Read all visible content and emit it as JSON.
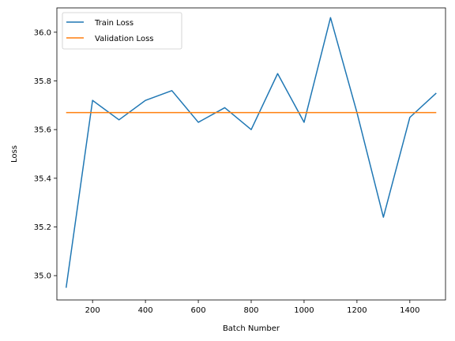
{
  "chart_data": {
    "type": "line",
    "title": "",
    "xlabel": "Batch Number",
    "ylabel": "Loss",
    "xlim": [
      65,
      1535
    ],
    "ylim": [
      34.9,
      36.1
    ],
    "xticks": [
      200,
      400,
      600,
      800,
      1000,
      1200,
      1400
    ],
    "yticks": [
      35.0,
      35.2,
      35.4,
      35.6,
      35.8,
      36.0
    ],
    "xtick_labels": [
      "200",
      "400",
      "600",
      "800",
      "1000",
      "1200",
      "1400"
    ],
    "ytick_labels": [
      "35.0",
      "35.2",
      "35.4",
      "35.6",
      "35.8",
      "36.0"
    ],
    "grid": false,
    "legend_position": "top-left",
    "x": [
      100,
      200,
      300,
      400,
      500,
      600,
      700,
      800,
      900,
      1000,
      1100,
      1200,
      1300,
      1400,
      1500
    ],
    "series": [
      {
        "name": "Train Loss",
        "color": "#1f77b4",
        "values": [
          34.95,
          35.72,
          35.64,
          35.72,
          35.76,
          35.63,
          35.69,
          35.6,
          35.83,
          35.63,
          36.06,
          35.67,
          35.24,
          35.65,
          35.75
        ]
      },
      {
        "name": "Validation Loss",
        "color": "#ff7f0e",
        "values": [
          35.67,
          35.67,
          35.67,
          35.67,
          35.67,
          35.67,
          35.67,
          35.67,
          35.67,
          35.67,
          35.67,
          35.67,
          35.67,
          35.67,
          35.67
        ]
      }
    ]
  }
}
